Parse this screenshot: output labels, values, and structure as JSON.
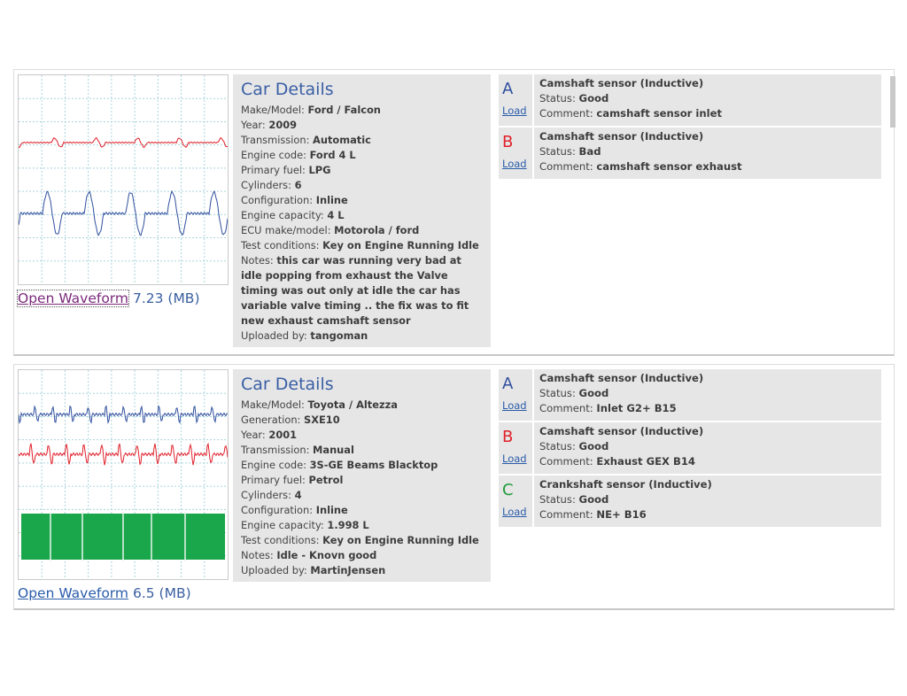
{
  "records": [
    {
      "link": "Open Waveform",
      "size": "7.23 (MB)",
      "details_title": "Car Details",
      "fields": [
        {
          "label": "Make/Model:",
          "value": "Ford / Falcon"
        },
        {
          "label": "Year:",
          "value": "2009"
        },
        {
          "label": "Transmission:",
          "value": "Automatic"
        },
        {
          "label": "Engine code:",
          "value": "Ford 4 L"
        },
        {
          "label": "Primary fuel:",
          "value": "LPG"
        },
        {
          "label": "Cylinders:",
          "value": "6"
        },
        {
          "label": "Configuration:",
          "value": "Inline"
        },
        {
          "label": "Engine capacity:",
          "value": "4 L"
        },
        {
          "label": "ECU make/model:",
          "value": "Motorola / ford"
        },
        {
          "label": "Test conditions:",
          "value": "Key on Engine Running Idle"
        },
        {
          "label": "Notes:",
          "value": "this car was running very bad at idle popping from exhaust the Valve timing was out only at idle the car has variable valve timing .. the fix was to fit new exhaust camshaft sensor"
        },
        {
          "label": "Uploaded by:",
          "value": "tangoman"
        }
      ],
      "channels": [
        {
          "letter": "A",
          "color": "#2f4f9e",
          "load": "Load",
          "sensor": "Camshaft sensor (Inductive)",
          "status_label": "Status:",
          "status": "Good",
          "comment_label": "Comment:",
          "comment": "camshaft sensor inlet"
        },
        {
          "letter": "B",
          "color": "#e0202a",
          "load": "Load",
          "sensor": "Camshaft sensor (Inductive)",
          "status_label": "Status:",
          "status": "Bad",
          "comment_label": "Comment:",
          "comment": "camshaft sensor exhaust"
        }
      ]
    },
    {
      "link": "Open Waveform",
      "size": "6.5 (MB)",
      "details_title": "Car Details",
      "fields": [
        {
          "label": "Make/Model:",
          "value": "Toyota / Altezza"
        },
        {
          "label": "Generation:",
          "value": "SXE10"
        },
        {
          "label": "Year:",
          "value": "2001"
        },
        {
          "label": "Transmission:",
          "value": "Manual"
        },
        {
          "label": "Engine code:",
          "value": "3S-GE Beams Blacktop"
        },
        {
          "label": "Primary fuel:",
          "value": "Petrol"
        },
        {
          "label": "Cylinders:",
          "value": "4"
        },
        {
          "label": "Configuration:",
          "value": "Inline"
        },
        {
          "label": "Engine capacity:",
          "value": "1.998 L"
        },
        {
          "label": "Test conditions:",
          "value": "Key on Engine Running Idle"
        },
        {
          "label": "Notes:",
          "value": "Idle - Knovn good"
        },
        {
          "label": "Uploaded by:",
          "value": "MartinJensen"
        }
      ],
      "channels": [
        {
          "letter": "A",
          "color": "#2f4f9e",
          "load": "Load",
          "sensor": "Camshaft sensor (Inductive)",
          "status_label": "Status:",
          "status": "Good",
          "comment_label": "Comment:",
          "comment": "Inlet G2+ B15"
        },
        {
          "letter": "B",
          "color": "#e0202a",
          "load": "Load",
          "sensor": "Camshaft sensor (Inductive)",
          "status_label": "Status:",
          "status": "Good",
          "comment_label": "Comment:",
          "comment": "Exhaust GEX B14"
        },
        {
          "letter": "C",
          "color": "#1f9a3a",
          "load": "Load",
          "sensor": "Crankshaft sensor (Inductive)",
          "status_label": "Status:",
          "status": "Good",
          "comment_label": "Comment:",
          "comment": "NE+ B16"
        }
      ]
    }
  ]
}
